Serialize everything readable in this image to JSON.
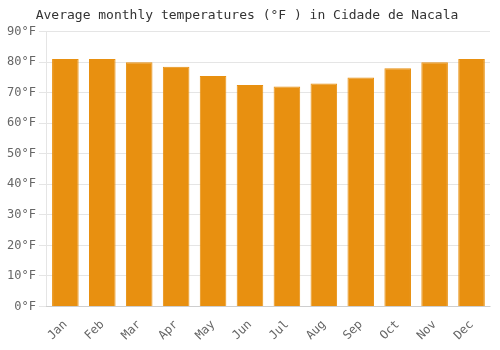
{
  "chart_data": {
    "type": "bar",
    "title": "Average monthly temperatures (°F ) in Cidade de Nacala",
    "categories": [
      "Jan",
      "Feb",
      "Mar",
      "Apr",
      "May",
      "Jun",
      "Jul",
      "Aug",
      "Sep",
      "Oct",
      "Nov",
      "Dec"
    ],
    "values": [
      81,
      81,
      80,
      78.5,
      75.5,
      72.5,
      72,
      73,
      75,
      78,
      80,
      81
    ],
    "color": "#E89010",
    "ylim": [
      0,
      90
    ],
    "yticks": [
      {
        "value": 0,
        "label": "0°F"
      },
      {
        "value": 10,
        "label": "10°F"
      },
      {
        "value": 20,
        "label": "20°F"
      },
      {
        "value": 30,
        "label": "30°F"
      },
      {
        "value": 40,
        "label": "40°F"
      },
      {
        "value": 50,
        "label": "50°F"
      },
      {
        "value": 60,
        "label": "60°F"
      },
      {
        "value": 70,
        "label": "70°F"
      },
      {
        "value": 80,
        "label": "80°F"
      },
      {
        "value": 90,
        "label": "90°F"
      }
    ],
    "grid": true
  }
}
